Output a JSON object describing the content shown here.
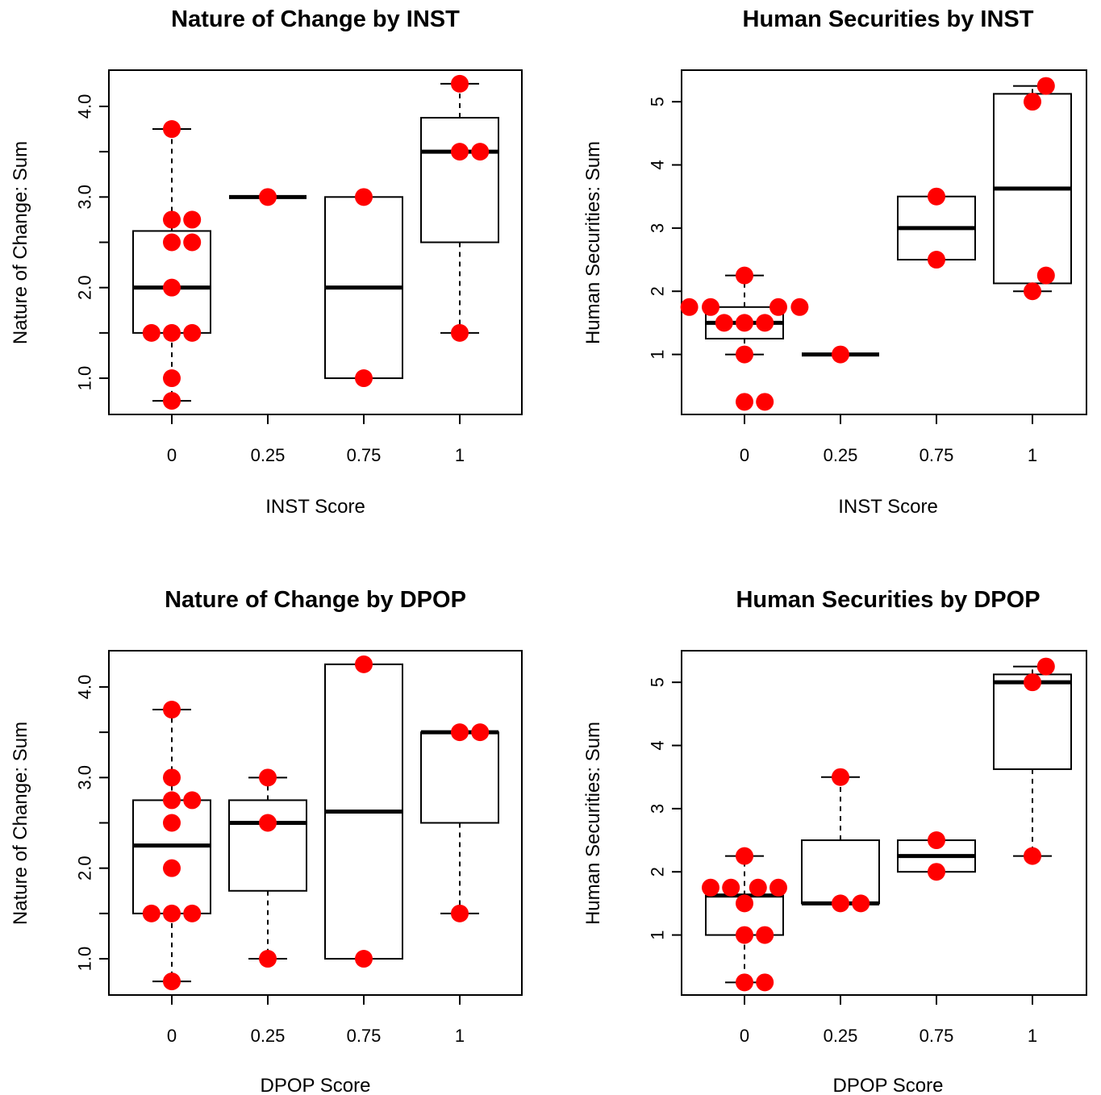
{
  "colors": {
    "points": "#ff0000",
    "box": "#000000",
    "background": "#ffffff"
  },
  "chart_data": [
    {
      "type": "boxplot",
      "title": "Nature of Change by INST",
      "xlabel": "INST Score",
      "ylabel": "Nature of Change: Sum",
      "categories": [
        "0",
        "0.25",
        "0.75",
        "1"
      ],
      "ylim": [
        0.6,
        4.4
      ],
      "yticks": [
        1.0,
        1.5,
        2.0,
        2.5,
        3.0,
        3.5,
        4.0
      ],
      "ytick_labels": [
        "1.0",
        "",
        "2.0",
        "",
        "3.0",
        "",
        "4.0"
      ],
      "boxes": [
        {
          "category": "0",
          "whisker_low": 0.75,
          "q1": 1.5,
          "median": 2.0,
          "q3": 2.625,
          "whisker_high": 3.75
        },
        {
          "category": "0.25",
          "whisker_low": 3.0,
          "q1": 3.0,
          "median": 3.0,
          "q3": 3.0,
          "whisker_high": 3.0
        },
        {
          "category": "0.75",
          "whisker_low": 1.0,
          "q1": 1.0,
          "median": 2.0,
          "q3": 3.0,
          "whisker_high": 3.0
        },
        {
          "category": "1",
          "whisker_low": 1.5,
          "q1": 2.5,
          "median": 3.5,
          "q3": 3.875,
          "whisker_high": 4.25
        }
      ],
      "points": [
        {
          "category": "0",
          "offset": 0,
          "y": 3.75
        },
        {
          "category": "0",
          "offset": 0,
          "y": 2.75
        },
        {
          "category": "0",
          "offset": 0.21,
          "y": 2.75
        },
        {
          "category": "0",
          "offset": 0,
          "y": 2.5
        },
        {
          "category": "0",
          "offset": 0.21,
          "y": 2.5
        },
        {
          "category": "0",
          "offset": 0,
          "y": 2.0
        },
        {
          "category": "0",
          "offset": -0.21,
          "y": 1.5
        },
        {
          "category": "0",
          "offset": 0,
          "y": 1.5
        },
        {
          "category": "0",
          "offset": 0.21,
          "y": 1.5
        },
        {
          "category": "0",
          "offset": 0,
          "y": 1.0
        },
        {
          "category": "0",
          "offset": 0,
          "y": 0.75
        },
        {
          "category": "0.25",
          "offset": 0,
          "y": 3.0
        },
        {
          "category": "0.75",
          "offset": 0,
          "y": 3.0
        },
        {
          "category": "0.75",
          "offset": 0,
          "y": 1.0
        },
        {
          "category": "1",
          "offset": 0,
          "y": 4.25
        },
        {
          "category": "1",
          "offset": 0,
          "y": 3.5
        },
        {
          "category": "1",
          "offset": 0.21,
          "y": 3.5
        },
        {
          "category": "1",
          "offset": 0,
          "y": 1.5
        }
      ]
    },
    {
      "type": "boxplot",
      "title": "Human Securities by INST",
      "xlabel": "INST Score",
      "ylabel": "Human Securities: Sum",
      "categories": [
        "0",
        "0.25",
        "0.75",
        "1"
      ],
      "ylim": [
        0.05,
        5.5
      ],
      "yticks": [
        1,
        2,
        3,
        4,
        5
      ],
      "ytick_labels": [
        "1",
        "2",
        "3",
        "4",
        "5"
      ],
      "boxes": [
        {
          "category": "0",
          "whisker_low": 1.0,
          "q1": 1.25,
          "median": 1.5,
          "q3": 1.75,
          "whisker_high": 2.25
        },
        {
          "category": "0.25",
          "whisker_low": 1.0,
          "q1": 1.0,
          "median": 1.0,
          "q3": 1.0,
          "whisker_high": 1.0
        },
        {
          "category": "0.75",
          "whisker_low": 2.5,
          "q1": 2.5,
          "median": 3.0,
          "q3": 3.5,
          "whisker_high": 3.5
        },
        {
          "category": "1",
          "whisker_low": 2.0,
          "q1": 2.125,
          "median": 3.625,
          "q3": 5.125,
          "whisker_high": 5.25
        }
      ],
      "points": [
        {
          "category": "0",
          "offset": 0,
          "y": 2.25
        },
        {
          "category": "0",
          "offset": -0.57,
          "y": 1.75
        },
        {
          "category": "0",
          "offset": -0.35,
          "y": 1.75
        },
        {
          "category": "0",
          "offset": 0.35,
          "y": 1.75
        },
        {
          "category": "0",
          "offset": 0.57,
          "y": 1.75
        },
        {
          "category": "0",
          "offset": -0.21,
          "y": 1.5
        },
        {
          "category": "0",
          "offset": 0,
          "y": 1.5
        },
        {
          "category": "0",
          "offset": 0.21,
          "y": 1.5
        },
        {
          "category": "0",
          "offset": 0,
          "y": 1.0
        },
        {
          "category": "0",
          "offset": 0,
          "y": 0.25
        },
        {
          "category": "0",
          "offset": 0.21,
          "y": 0.25
        },
        {
          "category": "0.25",
          "offset": 0,
          "y": 1.0
        },
        {
          "category": "0.75",
          "offset": 0,
          "y": 3.5
        },
        {
          "category": "0.75",
          "offset": 0,
          "y": 2.5
        },
        {
          "category": "1",
          "offset": 0.14,
          "y": 5.25
        },
        {
          "category": "1",
          "offset": 0,
          "y": 5.0
        },
        {
          "category": "1",
          "offset": 0.14,
          "y": 2.25
        },
        {
          "category": "1",
          "offset": 0,
          "y": 2.0
        }
      ]
    },
    {
      "type": "boxplot",
      "title": "Nature of Change by DPOP",
      "xlabel": "DPOP Score",
      "ylabel": "Nature of Change: Sum",
      "categories": [
        "0",
        "0.25",
        "0.75",
        "1"
      ],
      "ylim": [
        0.6,
        4.4
      ],
      "yticks": [
        1.0,
        1.5,
        2.0,
        2.5,
        3.0,
        3.5,
        4.0
      ],
      "ytick_labels": [
        "1.0",
        "",
        "2.0",
        "",
        "3.0",
        "",
        "4.0"
      ],
      "boxes": [
        {
          "category": "0",
          "whisker_low": 0.75,
          "q1": 1.5,
          "median": 2.25,
          "q3": 2.75,
          "whisker_high": 3.75
        },
        {
          "category": "0.25",
          "whisker_low": 1.0,
          "q1": 1.75,
          "median": 2.5,
          "q3": 2.75,
          "whisker_high": 3.0
        },
        {
          "category": "0.75",
          "whisker_low": 1.0,
          "q1": 1.0,
          "median": 2.625,
          "q3": 4.25,
          "whisker_high": 4.25
        },
        {
          "category": "1",
          "whisker_low": 1.5,
          "q1": 2.5,
          "median": 3.5,
          "q3": 3.5,
          "whisker_high": 3.5
        }
      ],
      "points": [
        {
          "category": "0",
          "offset": 0,
          "y": 3.75
        },
        {
          "category": "0",
          "offset": 0,
          "y": 3.0
        },
        {
          "category": "0",
          "offset": 0,
          "y": 2.75
        },
        {
          "category": "0",
          "offset": 0.21,
          "y": 2.75
        },
        {
          "category": "0",
          "offset": 0,
          "y": 2.5
        },
        {
          "category": "0",
          "offset": 0,
          "y": 2.0
        },
        {
          "category": "0",
          "offset": -0.21,
          "y": 1.5
        },
        {
          "category": "0",
          "offset": 0,
          "y": 1.5
        },
        {
          "category": "0",
          "offset": 0.21,
          "y": 1.5
        },
        {
          "category": "0",
          "offset": 0,
          "y": 0.75
        },
        {
          "category": "0.25",
          "offset": 0,
          "y": 3.0
        },
        {
          "category": "0.25",
          "offset": 0,
          "y": 2.5
        },
        {
          "category": "0.25",
          "offset": 0,
          "y": 1.0
        },
        {
          "category": "0.75",
          "offset": 0,
          "y": 4.25
        },
        {
          "category": "0.75",
          "offset": 0,
          "y": 1.0
        },
        {
          "category": "1",
          "offset": 0,
          "y": 3.5
        },
        {
          "category": "1",
          "offset": 0.21,
          "y": 3.5
        },
        {
          "category": "1",
          "offset": 0,
          "y": 1.5
        }
      ]
    },
    {
      "type": "boxplot",
      "title": "Human Securities by DPOP",
      "xlabel": "DPOP Score",
      "ylabel": "Human Securities: Sum",
      "categories": [
        "0",
        "0.25",
        "0.75",
        "1"
      ],
      "ylim": [
        0.05,
        5.5
      ],
      "yticks": [
        1,
        2,
        3,
        4,
        5
      ],
      "ytick_labels": [
        "1",
        "2",
        "3",
        "4",
        "5"
      ],
      "boxes": [
        {
          "category": "0",
          "whisker_low": 0.25,
          "q1": 1.0,
          "median": 1.625,
          "q3": 1.625,
          "whisker_high": 2.25
        },
        {
          "category": "0.25",
          "whisker_low": 1.5,
          "q1": 1.5,
          "median": 1.5,
          "q3": 2.5,
          "whisker_high": 3.5
        },
        {
          "category": "0.75",
          "whisker_low": 2.0,
          "q1": 2.0,
          "median": 2.25,
          "q3": 2.5,
          "whisker_high": 2.5
        },
        {
          "category": "1",
          "whisker_low": 2.25,
          "q1": 3.625,
          "median": 5.0,
          "q3": 5.125,
          "whisker_high": 5.25
        }
      ],
      "points": [
        {
          "category": "0",
          "offset": 0,
          "y": 2.25
        },
        {
          "category": "0",
          "offset": -0.35,
          "y": 1.75
        },
        {
          "category": "0",
          "offset": -0.14,
          "y": 1.75
        },
        {
          "category": "0",
          "offset": 0.14,
          "y": 1.75
        },
        {
          "category": "0",
          "offset": 0.35,
          "y": 1.75
        },
        {
          "category": "0",
          "offset": 0,
          "y": 1.5
        },
        {
          "category": "0",
          "offset": 0,
          "y": 1.0
        },
        {
          "category": "0",
          "offset": 0.21,
          "y": 1.0
        },
        {
          "category": "0",
          "offset": 0,
          "y": 0.25
        },
        {
          "category": "0",
          "offset": 0.21,
          "y": 0.25
        },
        {
          "category": "0.25",
          "offset": 0,
          "y": 3.5
        },
        {
          "category": "0.25",
          "offset": 0,
          "y": 1.5
        },
        {
          "category": "0.25",
          "offset": 0.21,
          "y": 1.5
        },
        {
          "category": "0.75",
          "offset": 0,
          "y": 2.5
        },
        {
          "category": "0.75",
          "offset": 0,
          "y": 2.0
        },
        {
          "category": "1",
          "offset": 0.14,
          "y": 5.25
        },
        {
          "category": "1",
          "offset": 0,
          "y": 5.0
        },
        {
          "category": "1",
          "offset": 0,
          "y": 2.25
        }
      ]
    }
  ]
}
